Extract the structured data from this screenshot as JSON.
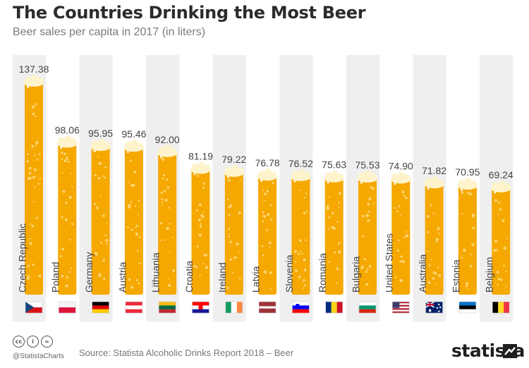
{
  "chart_data": {
    "type": "bar",
    "title": "The Countries Drinking the Most Beer",
    "subtitle": "Beer sales per capita in 2017 (in liters)",
    "xlabel": "",
    "ylabel": "",
    "ylim": [
      0,
      140
    ],
    "grid": false,
    "categories": [
      "Czech Republic",
      "Poland",
      "Germany",
      "Austria",
      "Lithuania",
      "Croatia",
      "Ireland",
      "Latvia",
      "Slovenia",
      "Romania",
      "Bulgaria",
      "United States",
      "Australia",
      "Estonia",
      "Belgium"
    ],
    "values": [
      137.38,
      98.06,
      95.95,
      95.46,
      92.0,
      81.19,
      79.22,
      76.78,
      76.52,
      75.63,
      75.53,
      74.9,
      71.82,
      70.95,
      69.24
    ],
    "value_labels": [
      "137.38",
      "98.06",
      "95.95",
      "95.46",
      "92.00",
      "81.19",
      "79.22",
      "76.78",
      "76.52",
      "75.63",
      "75.53",
      "74.90",
      "71.82",
      "70.95",
      "69.24"
    ],
    "flags": [
      "flag-czech-republic-icon",
      "flag-poland-icon",
      "flag-germany-icon",
      "flag-austria-icon",
      "flag-lithuania-icon",
      "flag-croatia-icon",
      "flag-ireland-icon",
      "flag-latvia-icon",
      "flag-slovenia-icon",
      "flag-romania-icon",
      "flag-bulgaria-icon",
      "flag-united-states-icon",
      "flag-australia-icon",
      "flag-estonia-icon",
      "flag-belgium-icon"
    ],
    "colors": {
      "beer": "#f5a800",
      "foam": "#fff3cc",
      "bubble": "#ffd77a",
      "band": "#efefef"
    }
  },
  "footer": {
    "handle": "@StatistaCharts",
    "source": "Source: Statista Alcoholic Drinks Report 2018 – Beer",
    "brand": "statista",
    "license_icons": [
      "cc-icon",
      "attribution-icon",
      "no-derivatives-icon"
    ],
    "license_glyphs": [
      "cc",
      "i",
      "="
    ]
  }
}
